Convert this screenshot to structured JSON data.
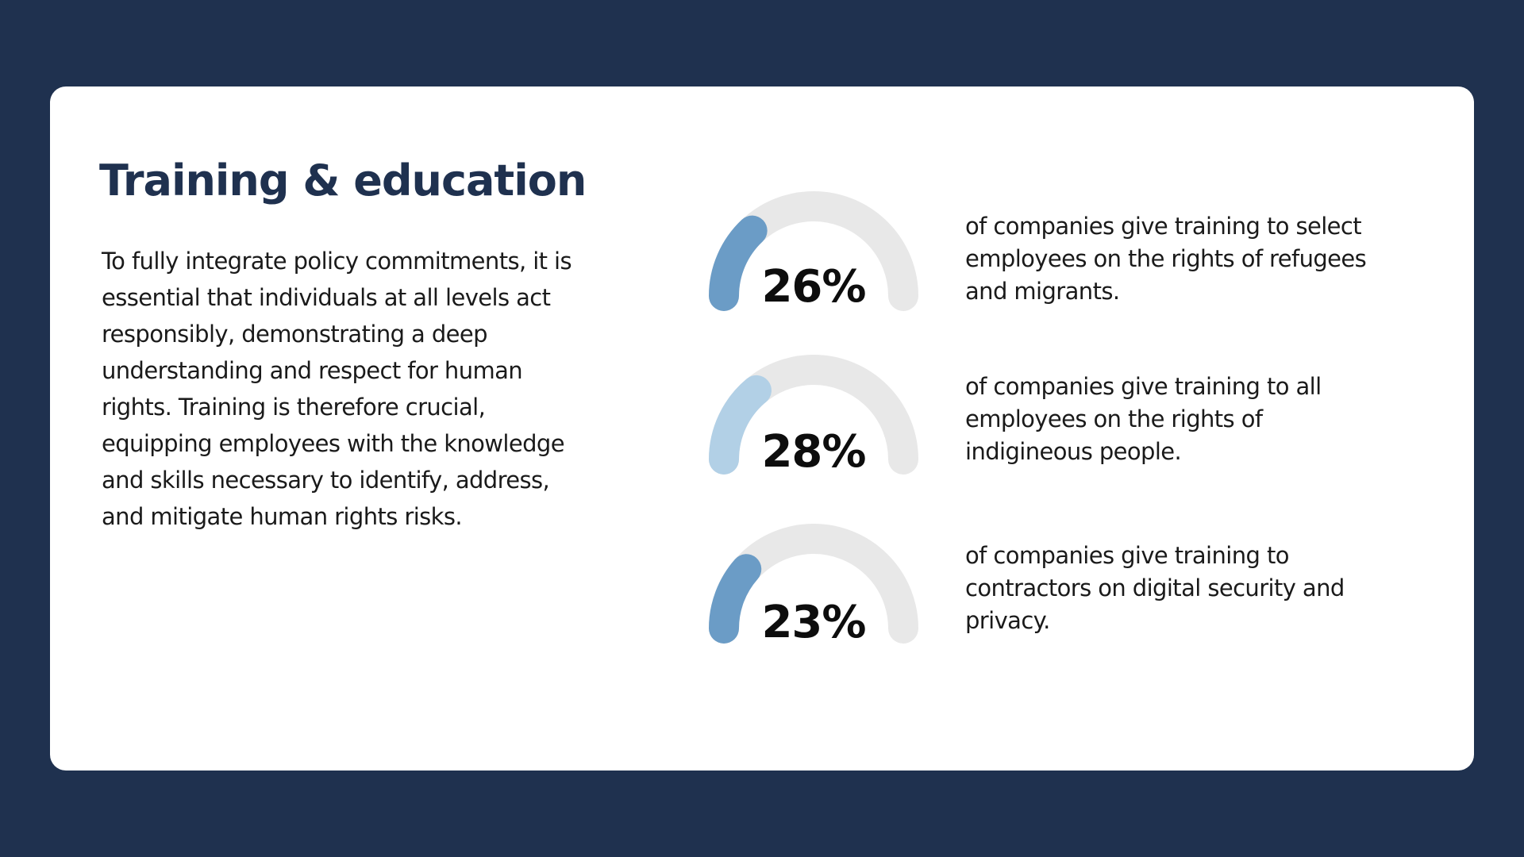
{
  "heading": "Training & education",
  "intro": "To fully integrate policy commitments, it is essential that individuals at all levels act responsibly, demonstrating a deep understanding and respect for human rights. Training is therefore crucial, equipping employees with the knowledge and skills necessary to identify, address, and mitigate human rights risks.",
  "colors": {
    "background": "#1f314f",
    "card": "#ffffff",
    "heading": "#1f314f",
    "gauge_track": "#e8e8e8",
    "gauge_fill_dark": "#6b9cc6",
    "gauge_fill_light": "#b2d0e6"
  },
  "stats": [
    {
      "label": "26%",
      "value": 26,
      "fill_color": "#6b9cc6",
      "description": "of companies give training to select employees on the rights of refugees and migrants."
    },
    {
      "label": "28%",
      "value": 28,
      "fill_color": "#b2d0e6",
      "description": "of companies give training to all employees on the rights of indigineous people."
    },
    {
      "label": "23%",
      "value": 23,
      "fill_color": "#6b9cc6",
      "description": "of companies give training to contractors on digital security and privacy."
    }
  ]
}
